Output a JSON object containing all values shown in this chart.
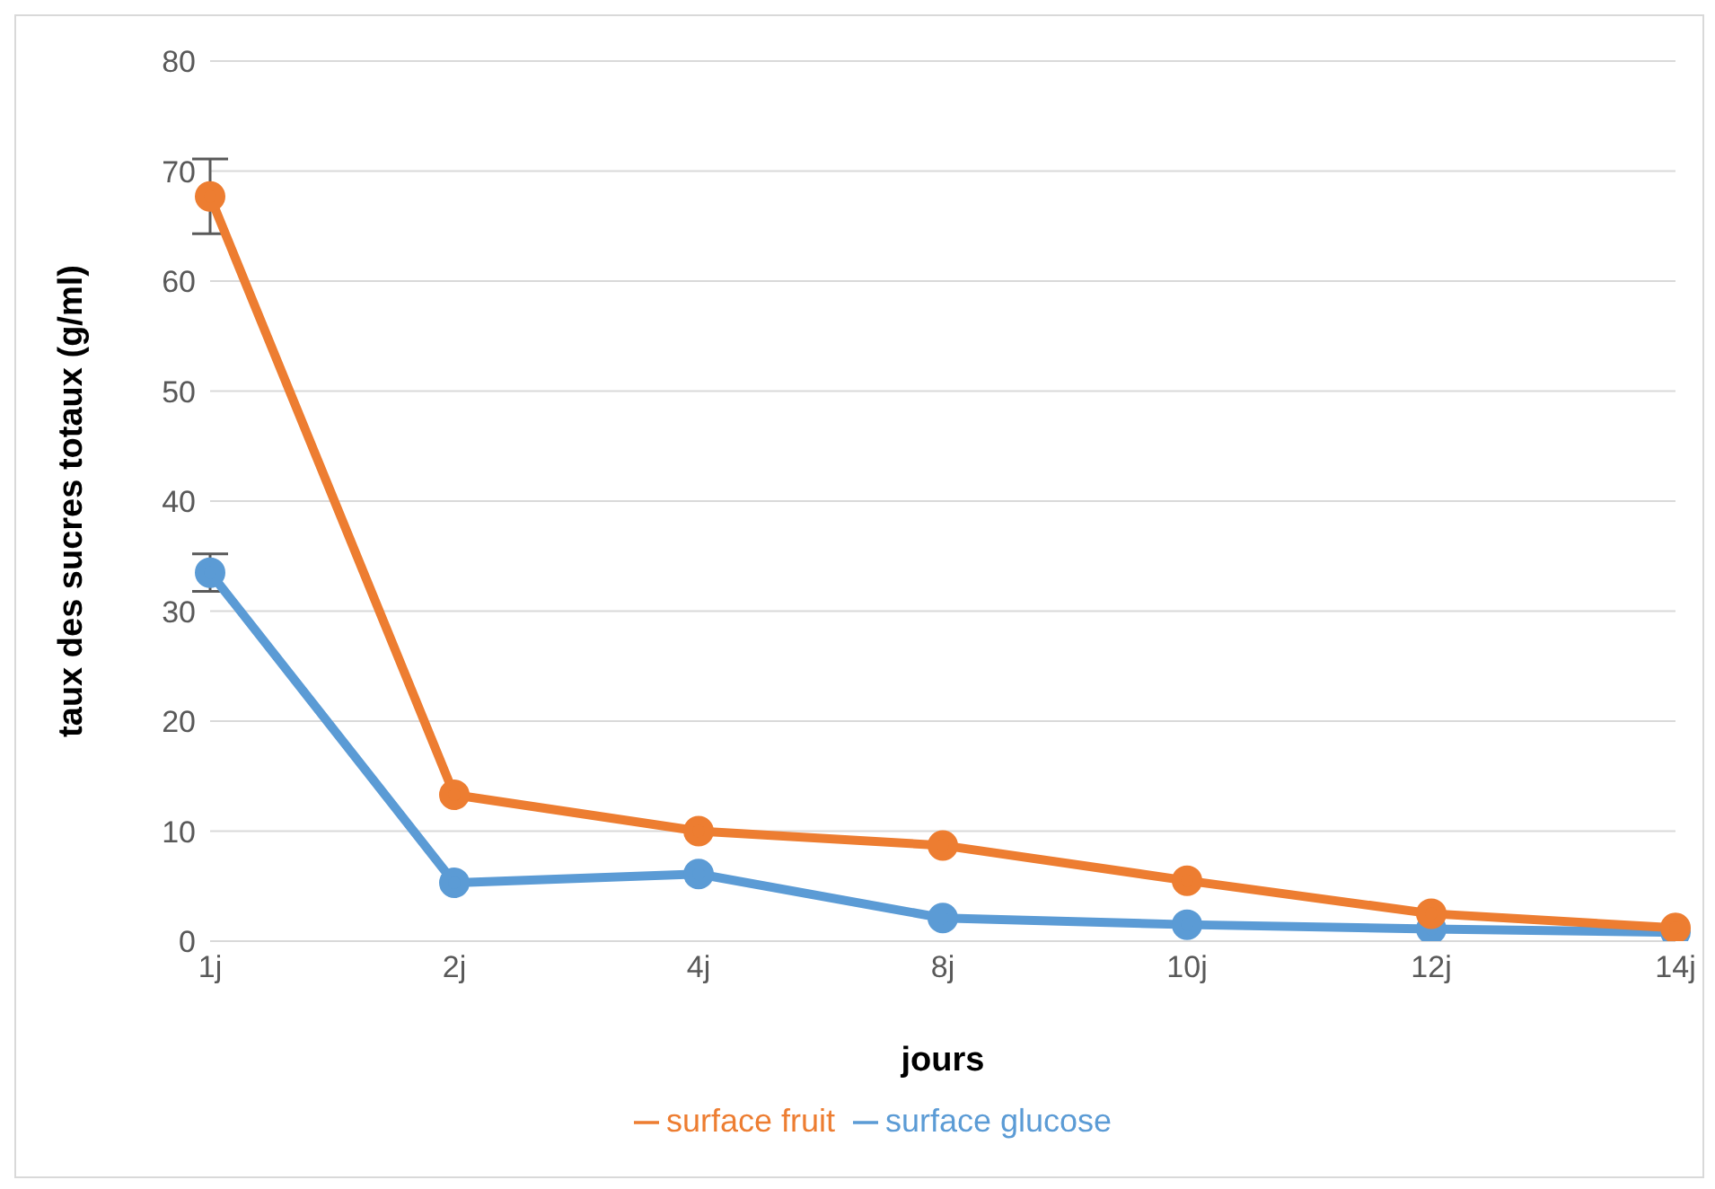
{
  "chart_data": {
    "type": "line",
    "xlabel": "jours",
    "ylabel": "taux des sucres totaux (g/ml)",
    "categories": [
      "1j",
      "2j",
      "4j",
      "8j",
      "10j",
      "12j",
      "14j"
    ],
    "series": [
      {
        "name": "surface glucose",
        "color": "#5b9bd5",
        "values": [
          33.5,
          5.3,
          6.1,
          2.1,
          1.5,
          1.1,
          0.8
        ],
        "errors": [
          1.7,
          null,
          null,
          null,
          null,
          null,
          null
        ]
      },
      {
        "name": "surface fruit",
        "color": "#ed7d31",
        "values": [
          67.7,
          13.3,
          10.0,
          8.7,
          5.5,
          2.5,
          1.2
        ],
        "errors": [
          3.4,
          null,
          null,
          null,
          null,
          null,
          null
        ]
      }
    ],
    "ylim": [
      0,
      80
    ],
    "yticks": [
      0,
      10,
      20,
      30,
      40,
      50,
      60,
      70,
      80
    ],
    "grid": "y",
    "legend": "bottom",
    "marker": "circle",
    "line_style": "solid"
  }
}
